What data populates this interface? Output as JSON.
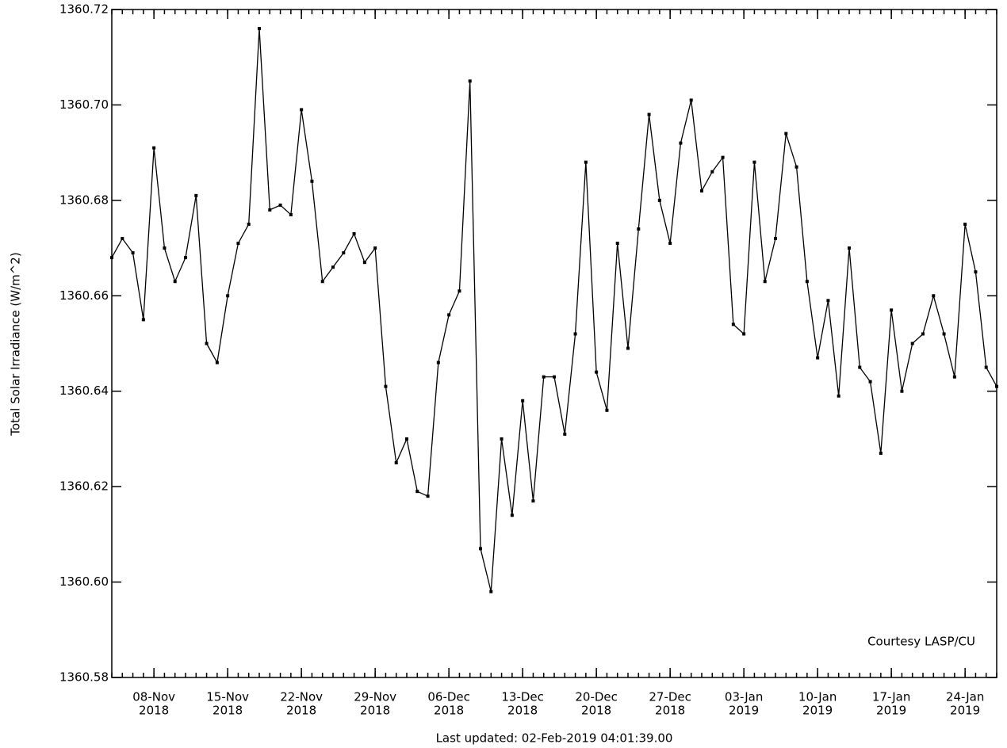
{
  "chart_data": {
    "type": "line",
    "y_label": "Total Solar Irradiance (W/m^2)",
    "annotation": "Courtesy LASP/CU",
    "footer": "Last updated: 02-Feb-2019 04:01:39.00",
    "color": "#000000",
    "marker": true,
    "grid": false,
    "xlim": [
      "2018-11-04",
      "2019-01-27"
    ],
    "xticks": [
      {
        "value": "2018-11-08",
        "label": [
          "08-Nov",
          "2018"
        ]
      },
      {
        "value": "2018-11-15",
        "label": [
          "15-Nov",
          "2018"
        ]
      },
      {
        "value": "2018-11-22",
        "label": [
          "22-Nov",
          "2018"
        ]
      },
      {
        "value": "2018-11-29",
        "label": [
          "29-Nov",
          "2018"
        ]
      },
      {
        "value": "2018-12-06",
        "label": [
          "06-Dec",
          "2018"
        ]
      },
      {
        "value": "2018-12-13",
        "label": [
          "13-Dec",
          "2018"
        ]
      },
      {
        "value": "2018-12-20",
        "label": [
          "20-Dec",
          "2018"
        ]
      },
      {
        "value": "2018-12-27",
        "label": [
          "27-Dec",
          "2018"
        ]
      },
      {
        "value": "2019-01-03",
        "label": [
          "03-Jan",
          "2019"
        ]
      },
      {
        "value": "2019-01-10",
        "label": [
          "10-Jan",
          "2019"
        ]
      },
      {
        "value": "2019-01-17",
        "label": [
          "17-Jan",
          "2019"
        ]
      },
      {
        "value": "2019-01-24",
        "label": [
          "24-Jan",
          "2019"
        ]
      }
    ],
    "ylim": [
      1360.58,
      1360.72
    ],
    "yticks": [
      1360.58,
      {
        "value": 1360.6,
        "label": "1360.60"
      },
      1360.62,
      1360.64,
      1360.66,
      1360.68,
      {
        "value": 1360.7,
        "label": "1360.70"
      },
      1360.72
    ],
    "x": [
      "2018-11-04",
      "2018-11-05",
      "2018-11-06",
      "2018-11-07",
      "2018-11-08",
      "2018-11-09",
      "2018-11-10",
      "2018-11-11",
      "2018-11-12",
      "2018-11-13",
      "2018-11-14",
      "2018-11-15",
      "2018-11-16",
      "2018-11-17",
      "2018-11-18",
      "2018-11-19",
      "2018-11-20",
      "2018-11-21",
      "2018-11-22",
      "2018-11-23",
      "2018-11-24",
      "2018-11-25",
      "2018-11-26",
      "2018-11-27",
      "2018-11-28",
      "2018-11-29",
      "2018-11-30",
      "2018-12-01",
      "2018-12-02",
      "2018-12-03",
      "2018-12-04",
      "2018-12-05",
      "2018-12-06",
      "2018-12-07",
      "2018-12-08",
      "2018-12-09",
      "2018-12-10",
      "2018-12-11",
      "2018-12-12",
      "2018-12-13",
      "2018-12-14",
      "2018-12-15",
      "2018-12-16",
      "2018-12-17",
      "2018-12-18",
      "2018-12-19",
      "2018-12-20",
      "2018-12-21",
      "2018-12-22",
      "2018-12-23",
      "2018-12-24",
      "2018-12-25",
      "2018-12-26",
      "2018-12-27",
      "2018-12-28",
      "2018-12-29",
      "2018-12-30",
      "2018-12-31",
      "2019-01-01",
      "2019-01-02",
      "2019-01-03",
      "2019-01-04",
      "2019-01-05",
      "2019-01-06",
      "2019-01-07",
      "2019-01-08",
      "2019-01-09",
      "2019-01-10",
      "2019-01-11",
      "2019-01-12",
      "2019-01-13",
      "2019-01-14",
      "2019-01-15",
      "2019-01-16",
      "2019-01-17",
      "2019-01-18",
      "2019-01-19",
      "2019-01-20",
      "2019-01-21",
      "2019-01-22",
      "2019-01-23",
      "2019-01-24",
      "2019-01-25",
      "2019-01-26",
      "2019-01-27"
    ],
    "values": [
      1360.668,
      1360.672,
      1360.669,
      1360.655,
      1360.691,
      1360.67,
      1360.663,
      1360.668,
      1360.681,
      1360.65,
      1360.646,
      1360.66,
      1360.671,
      1360.675,
      1360.716,
      1360.678,
      1360.679,
      1360.677,
      1360.699,
      1360.684,
      1360.663,
      1360.666,
      1360.669,
      1360.673,
      1360.667,
      1360.67,
      1360.641,
      1360.625,
      1360.63,
      1360.619,
      1360.618,
      1360.646,
      1360.656,
      1360.661,
      1360.705,
      1360.607,
      1360.598,
      1360.63,
      1360.614,
      1360.638,
      1360.617,
      1360.643,
      1360.643,
      1360.631,
      1360.652,
      1360.688,
      1360.644,
      1360.636,
      1360.671,
      1360.649,
      1360.674,
      1360.698,
      1360.68,
      1360.671,
      1360.692,
      1360.701,
      1360.682,
      1360.686,
      1360.689,
      1360.654,
      1360.652,
      1360.688,
      1360.663,
      1360.672,
      1360.694,
      1360.687,
      1360.663,
      1360.647,
      1360.659,
      1360.639,
      1360.67,
      1360.645,
      1360.642,
      1360.627,
      1360.657,
      1360.64,
      1360.65,
      1360.652,
      1360.66,
      1360.652,
      1360.643,
      1360.675,
      1360.665,
      1360.645,
      1360.641
    ]
  }
}
